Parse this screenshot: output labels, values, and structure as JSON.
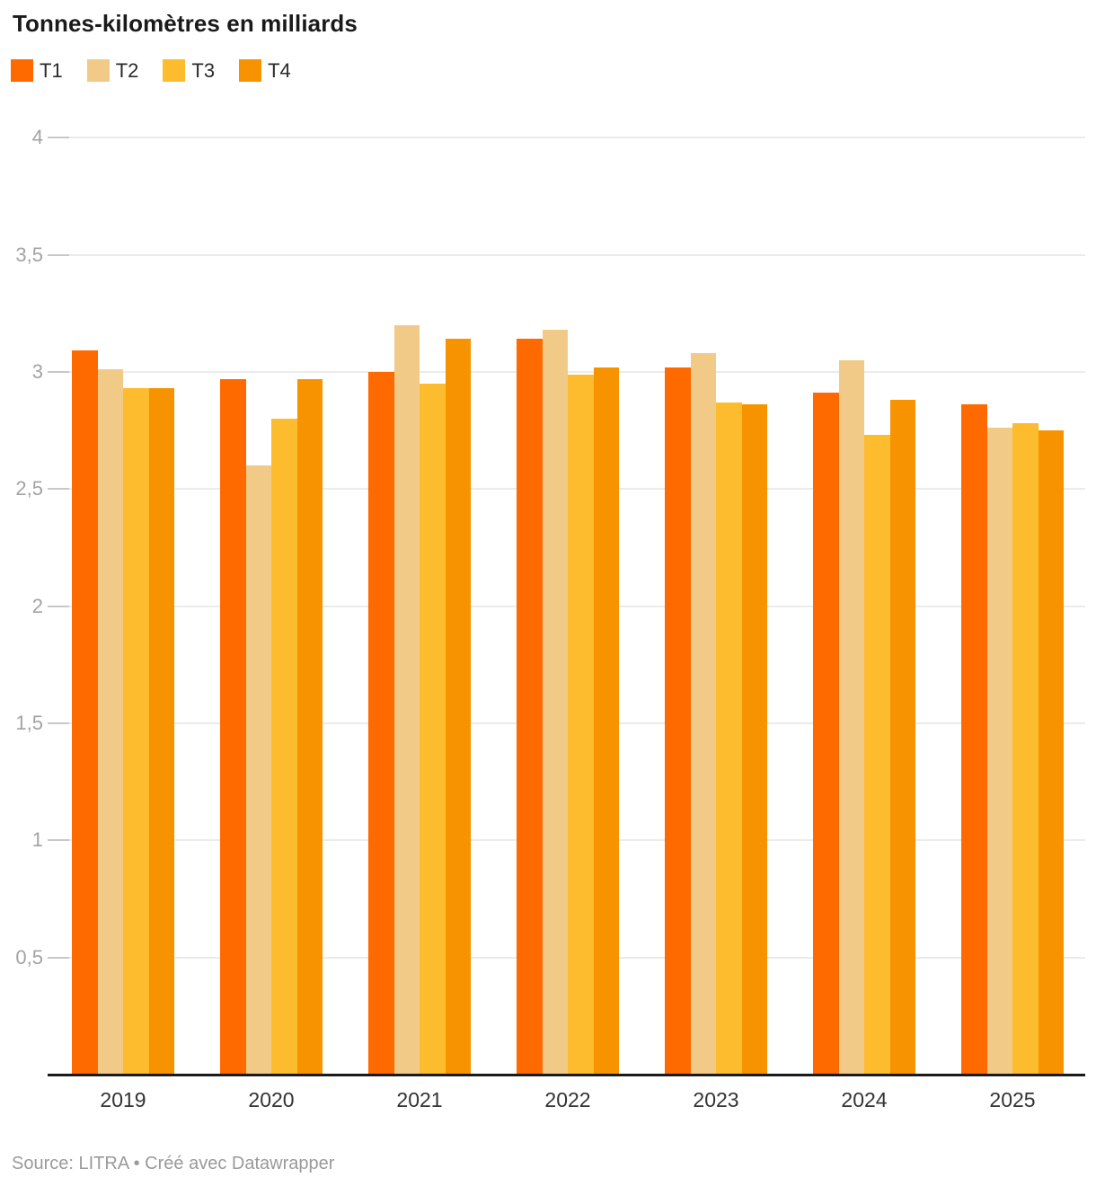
{
  "title": "Tonnes-kilomètres en milliards",
  "footer": {
    "text": "Source: LITRA • Créé avec Datawrapper"
  },
  "colors": {
    "t1": "#fe6900",
    "t2": "#f2ca87",
    "t3": "#fdbc2e",
    "t4": "#f89300",
    "gridline": "#ebebeb",
    "grid_tick": "#c8c8c8",
    "axis_line": "#1a1a1a",
    "ytick_text": "#a3a3a3",
    "xtick_text": "#333333",
    "footer_text": "#9a9a9a"
  },
  "chart_data": {
    "type": "bar",
    "title": "Tonnes-kilomètres en milliards",
    "xlabel": "",
    "ylabel": "Tonnes-kilomètres en milliards",
    "categories": [
      "2019",
      "2020",
      "2021",
      "2022",
      "2023",
      "2024",
      "2025"
    ],
    "series": [
      {
        "name": "T1",
        "color": "#fe6900",
        "values": [
          3.09,
          2.97,
          3.0,
          3.14,
          3.02,
          2.91,
          2.86
        ]
      },
      {
        "name": "T2",
        "color": "#f2ca87",
        "values": [
          3.01,
          2.6,
          3.2,
          3.18,
          3.08,
          3.05,
          2.76
        ]
      },
      {
        "name": "T3",
        "color": "#fdbc2e",
        "values": [
          2.93,
          2.8,
          2.95,
          2.99,
          2.87,
          2.73,
          2.78
        ]
      },
      {
        "name": "T4",
        "color": "#f89300",
        "values": [
          2.93,
          2.97,
          3.14,
          3.02,
          2.86,
          2.88,
          2.75
        ]
      }
    ],
    "ylim": [
      0,
      4
    ],
    "yticks": [
      {
        "value": 0.5,
        "label": "0,5"
      },
      {
        "value": 1,
        "label": "1"
      },
      {
        "value": 1.5,
        "label": "1,5"
      },
      {
        "value": 2,
        "label": "2"
      },
      {
        "value": 2.5,
        "label": "2,5"
      },
      {
        "value": 3,
        "label": "3"
      },
      {
        "value": 3.5,
        "label": "3,5"
      },
      {
        "value": 4,
        "label": "4"
      }
    ],
    "grid": "horizontal",
    "legend_position": "top-left",
    "decimal_separator": ","
  }
}
